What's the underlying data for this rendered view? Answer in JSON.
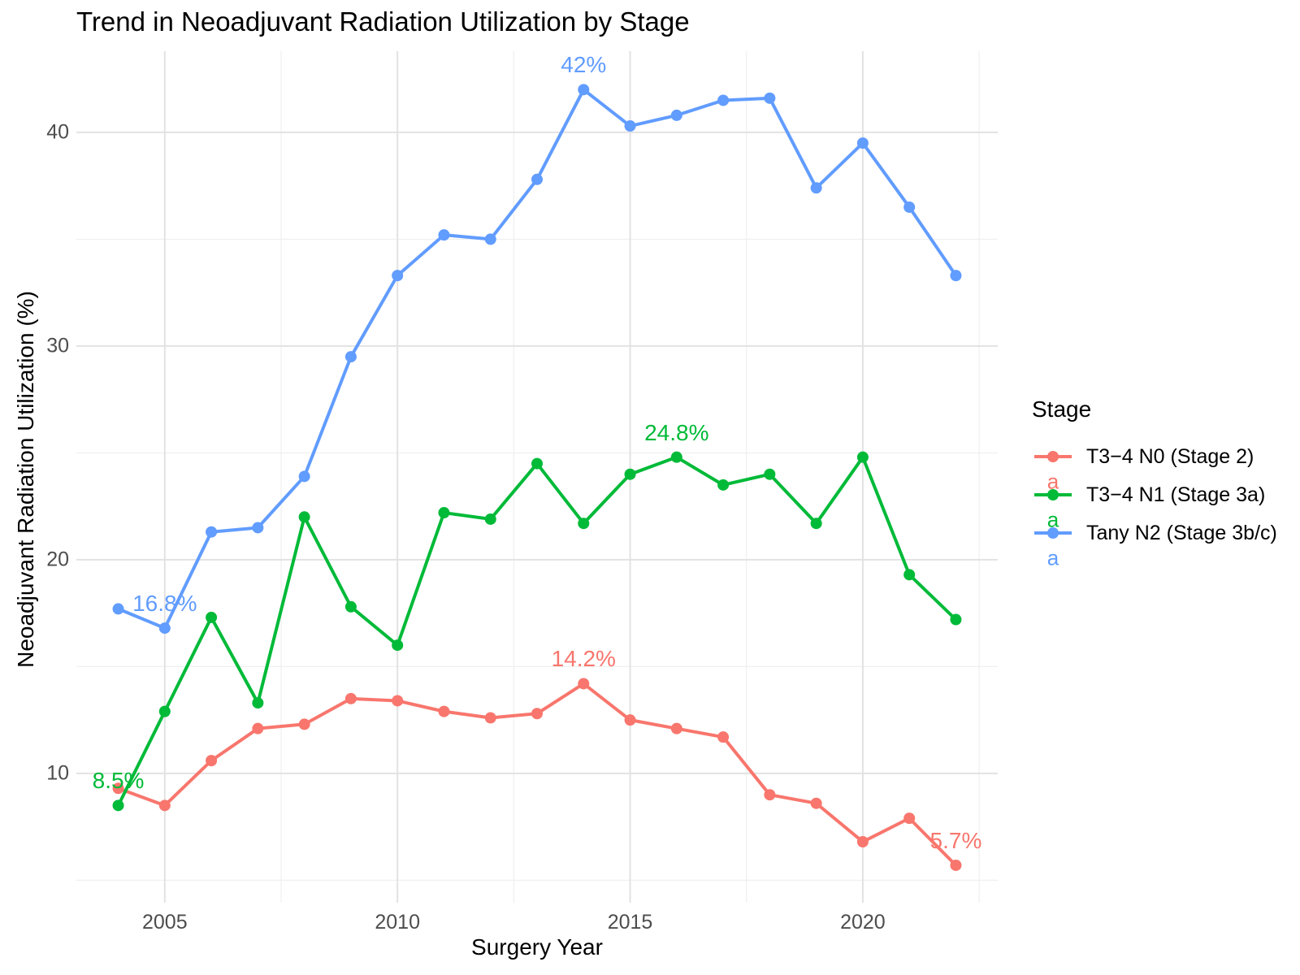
{
  "chart_data": {
    "type": "line",
    "title": "Trend in Neoadjuvant Radiation Utilization by Stage",
    "xlabel": "Surgery Year",
    "ylabel": "Neoadjuvant Radiation Utilization (%)",
    "grid": "on",
    "x": [
      2004,
      2005,
      2006,
      2007,
      2008,
      2009,
      2010,
      2011,
      2012,
      2013,
      2014,
      2015,
      2016,
      2017,
      2018,
      2019,
      2020,
      2021,
      2022
    ],
    "series": [
      {
        "name": "T3−4 N0 (Stage 2)",
        "color": "#F8766D",
        "values": [
          9.3,
          8.5,
          10.6,
          12.1,
          12.3,
          13.5,
          13.4,
          12.9,
          12.6,
          12.8,
          14.2,
          12.5,
          12.1,
          11.7,
          9.0,
          8.6,
          6.8,
          7.9,
          5.7
        ]
      },
      {
        "name": "T3−4 N1 (Stage 3a)",
        "color": "#00BA38",
        "values": [
          8.5,
          12.9,
          17.3,
          13.3,
          22.0,
          17.8,
          16.0,
          22.2,
          21.9,
          24.5,
          21.7,
          24.0,
          24.8,
          23.5,
          24.0,
          21.7,
          24.8,
          19.3,
          17.2
        ]
      },
      {
        "name": "Tany N2 (Stage 3b/c)",
        "color": "#619CFF",
        "values": [
          17.7,
          16.8,
          21.3,
          21.5,
          23.9,
          29.5,
          33.3,
          35.2,
          35.0,
          37.8,
          42.0,
          40.3,
          40.8,
          41.5,
          41.6,
          37.4,
          39.5,
          36.5,
          33.3
        ]
      }
    ],
    "axes": {
      "x": {
        "min": 2003.1,
        "max": 2022.9,
        "ticks": [
          2005,
          2010,
          2015,
          2020
        ],
        "minor_ticks": [
          2007.5,
          2012.5,
          2017.5,
          2022.5
        ]
      },
      "y": {
        "min": 3.95,
        "max": 43.8,
        "ticks": [
          10,
          20,
          30,
          40
        ],
        "minor_ticks": [
          5,
          15,
          25,
          35
        ]
      }
    },
    "legend": {
      "title": "Stage",
      "position": "right",
      "key_letter": "a"
    },
    "annotations": [
      {
        "text": "16.8%",
        "year": 2005,
        "value": 16.8,
        "series": 2
      },
      {
        "text": "42%",
        "year": 2014,
        "value": 42.0,
        "series": 2
      },
      {
        "text": "8.5%",
        "year": 2004,
        "value": 8.5,
        "series": 1
      },
      {
        "text": "24.8%",
        "year": 2016,
        "value": 24.8,
        "series": 1
      },
      {
        "text": "14.2%",
        "year": 2014,
        "value": 14.2,
        "series": 0
      },
      {
        "text": "5.7%",
        "year": 2022,
        "value": 5.7,
        "series": 0
      }
    ],
    "colors": {
      "grid_major": "#E2E2E2",
      "grid_minor": "#EFEFEF",
      "tick_text": "#4D4D4D",
      "title_text": "#000000"
    }
  }
}
